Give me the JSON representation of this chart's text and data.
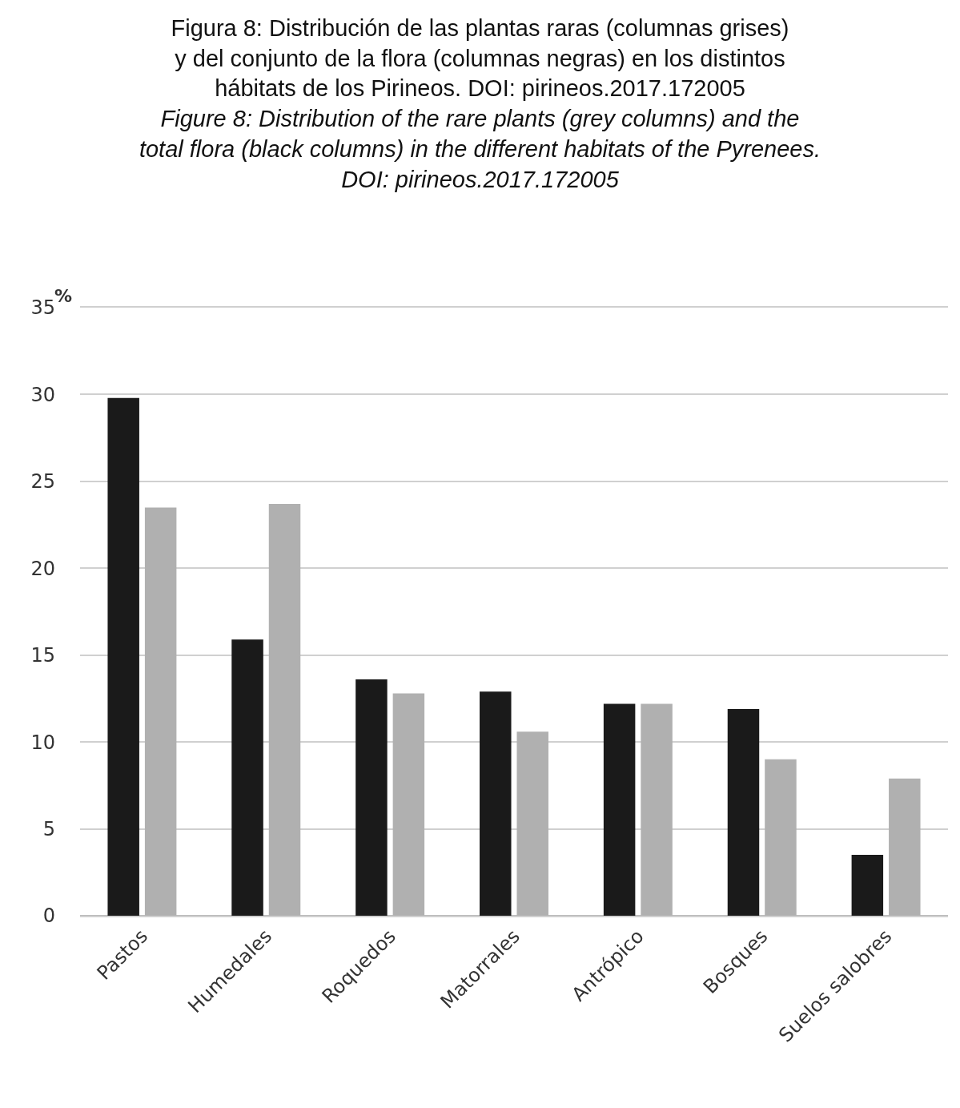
{
  "chart_data": {
    "type": "bar",
    "title": "Figura 8: Distribución de las plantas raras (columnas grises)\ny del conjunto de la flora (columnas negras) en los distintos\nhábitats de los Pirineos. DOI: pirineos.2017.172005",
    "subtitle": "Figure 8: Distribution of the rare plants (grey columns) and the\ntotal flora (black columns) in the different habitats of the Pyrenees.\nDOI: pirineos.2017.172005",
    "ylabel": "%",
    "categories": [
      "Pastos",
      "Humedales",
      "Roquedos",
      "Matorrales",
      "Antrópico",
      "Bosques",
      "Suelos salobres"
    ],
    "series": [
      {
        "color": "#1a1a1a",
        "values": [
          29.8,
          15.9,
          13.6,
          12.9,
          12.2,
          11.9,
          3.5
        ]
      },
      {
        "color": "#b0b0b0",
        "values": [
          23.5,
          23.7,
          12.8,
          10.6,
          12.2,
          9.0,
          7.9
        ]
      }
    ],
    "ylim": [
      0,
      35
    ],
    "yticks": [
      0,
      5,
      10,
      15,
      20,
      25,
      30,
      35
    ],
    "grid": "y"
  }
}
